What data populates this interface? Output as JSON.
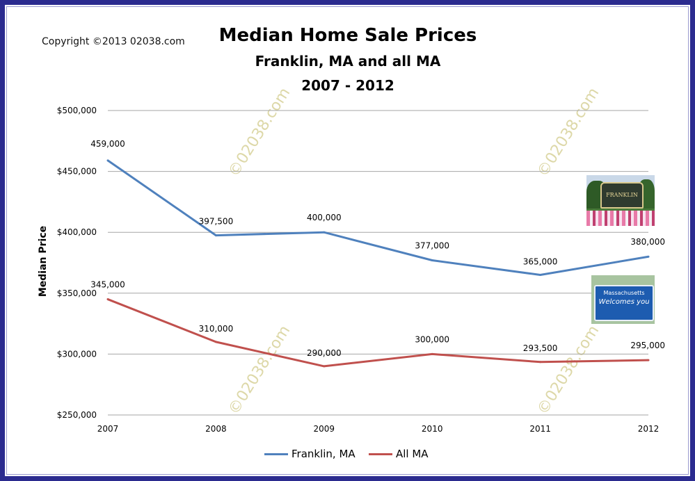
{
  "copyright": "Copyright ©2013 02038.com",
  "watermark": "©02038.com",
  "colors": {
    "franklin": "#4f81bd",
    "all_ma": "#c0504d",
    "border": "#2b2b8f",
    "grid": "#a6a6a6"
  },
  "photos": {
    "franklin_sign": "FRANKLIN",
    "ma_sign_line1": "Massachusetts",
    "ma_sign_line2": "Welcomes you"
  },
  "chart_data": {
    "type": "line",
    "title": "Median Home Sale Prices",
    "subtitle": "Franklin, MA and all MA",
    "subtitle2": "2007 - 2012",
    "xlabel": "",
    "ylabel": "Median Price",
    "categories": [
      "2007",
      "2008",
      "2009",
      "2010",
      "2011",
      "2012"
    ],
    "ylim": [
      250000,
      500000
    ],
    "yticks": [
      250000,
      300000,
      350000,
      400000,
      450000,
      500000
    ],
    "ytick_labels": [
      "$250,000",
      "$300,000",
      "$350,000",
      "$400,000",
      "$450,000",
      "$500,000"
    ],
    "grid": true,
    "legend_position": "bottom",
    "series": [
      {
        "name": "Franklin, MA",
        "values": [
          459000,
          397500,
          400000,
          377000,
          365000,
          380000
        ],
        "labels": [
          "459,000",
          "397,500",
          "400,000",
          "377,000",
          "365,000",
          "380,000"
        ]
      },
      {
        "name": "All MA",
        "values": [
          345000,
          310000,
          290000,
          300000,
          293500,
          295000
        ],
        "labels": [
          "345,000",
          "310,000",
          "290,000",
          "300,000",
          "293,500",
          "295,000"
        ]
      }
    ]
  }
}
